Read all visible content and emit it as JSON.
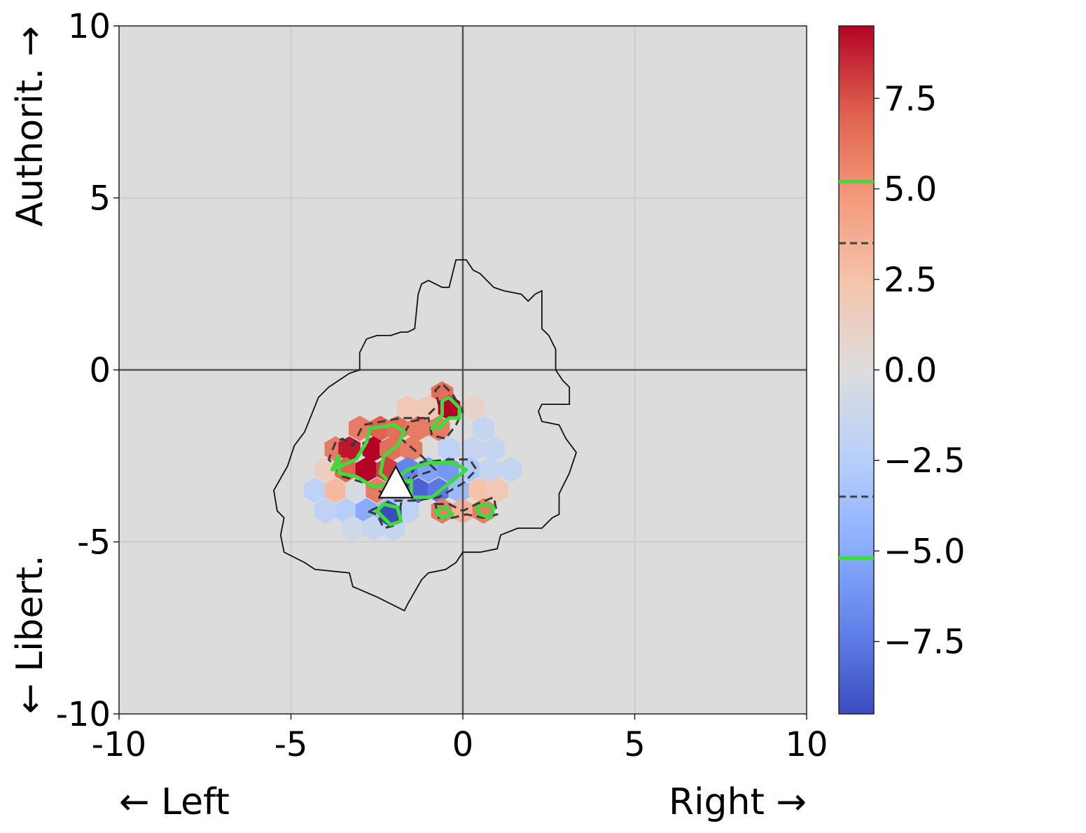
{
  "chart_data": {
    "type": "heatmap",
    "subtype": "hexbin",
    "title": "",
    "xlim": [
      -10,
      10
    ],
    "ylim": [
      -10,
      10
    ],
    "x_ticks": [
      "-10",
      "-5",
      "0",
      "5",
      "10"
    ],
    "y_ticks": [
      "-10",
      "-5",
      "0",
      "5",
      "10"
    ],
    "x_label_left": "← Left",
    "x_label_right": "Right →",
    "y_label_top": "Authorit. →",
    "y_label_bottom": "← Libert.",
    "grid": true,
    "background_color": "#dcdcdc",
    "colormap": "coolwarm",
    "colorbar": {
      "range": [
        -9.5,
        9.5
      ],
      "tick_values": [
        7.5,
        5.0,
        2.5,
        0.0,
        -2.5,
        -5.0,
        -7.5
      ],
      "tick_labels": [
        "7.5",
        "5.0",
        "2.5",
        "0.0",
        "−2.5",
        "−5.0",
        "−7.5"
      ],
      "contour_lines": [
        {
          "value": 5.2,
          "style": "solid",
          "color": "#3ddc3d"
        },
        {
          "value": 3.5,
          "style": "dashed",
          "color": "#404040"
        },
        {
          "value": -3.5,
          "style": "dashed",
          "color": "#404040"
        },
        {
          "value": -5.2,
          "style": "solid",
          "color": "#3ddc3d"
        }
      ]
    },
    "hex_cells": [
      {
        "x": -0.6,
        "y": -0.7,
        "value": 6.5
      },
      {
        "x": -1.6,
        "y": -1.1,
        "value": 2
      },
      {
        "x": -1.0,
        "y": -1.1,
        "value": 2
      },
      {
        "x": -0.4,
        "y": -1.1,
        "value": 9.5
      },
      {
        "x": 0.3,
        "y": -1.1,
        "value": 1
      },
      {
        "x": -3.0,
        "y": -1.7,
        "value": 6
      },
      {
        "x": -2.4,
        "y": -1.7,
        "value": 7
      },
      {
        "x": -1.9,
        "y": -1.7,
        "value": 6.5
      },
      {
        "x": -1.3,
        "y": -1.7,
        "value": 6
      },
      {
        "x": -0.7,
        "y": -1.7,
        "value": 6
      },
      {
        "x": 0.6,
        "y": -1.7,
        "value": -1.5
      },
      {
        "x": -3.7,
        "y": -2.3,
        "value": 6
      },
      {
        "x": -3.3,
        "y": -2.3,
        "value": 9
      },
      {
        "x": -2.6,
        "y": -2.3,
        "value": 9.5
      },
      {
        "x": -2.1,
        "y": -2.3,
        "value": 6.5
      },
      {
        "x": -1.5,
        "y": -2.3,
        "value": 6
      },
      {
        "x": -0.4,
        "y": -2.3,
        "value": -2
      },
      {
        "x": 0.3,
        "y": -2.3,
        "value": -1.5
      },
      {
        "x": 0.9,
        "y": -2.3,
        "value": -1.5
      },
      {
        "x": -4.0,
        "y": -2.9,
        "value": 1.5
      },
      {
        "x": -3.4,
        "y": -2.9,
        "value": 7
      },
      {
        "x": -2.8,
        "y": -2.9,
        "value": 9.5
      },
      {
        "x": -2.2,
        "y": -2.9,
        "value": 8
      },
      {
        "x": -1.6,
        "y": -2.9,
        "value": -7
      },
      {
        "x": -1.0,
        "y": -2.9,
        "value": -5.5
      },
      {
        "x": -0.4,
        "y": -2.9,
        "value": -6
      },
      {
        "x": 0.2,
        "y": -2.9,
        "value": -3
      },
      {
        "x": 0.8,
        "y": -2.9,
        "value": -1.5
      },
      {
        "x": 1.4,
        "y": -2.9,
        "value": -1.5
      },
      {
        "x": -4.3,
        "y": -3.5,
        "value": -2
      },
      {
        "x": -3.7,
        "y": -3.5,
        "value": 3
      },
      {
        "x": -3.1,
        "y": -3.5,
        "value": -0.5
      },
      {
        "x": -2.5,
        "y": -3.5,
        "value": 6
      },
      {
        "x": -1.9,
        "y": -3.5,
        "value": -4
      },
      {
        "x": -1.3,
        "y": -3.5,
        "value": -8.5
      },
      {
        "x": -0.7,
        "y": -3.5,
        "value": -7.5
      },
      {
        "x": -0.1,
        "y": -3.5,
        "value": -4
      },
      {
        "x": 0.5,
        "y": -3.5,
        "value": 2.5
      },
      {
        "x": 1.0,
        "y": -3.5,
        "value": 2
      },
      {
        "x": -4.0,
        "y": -4.1,
        "value": -2
      },
      {
        "x": -3.4,
        "y": -4.1,
        "value": -2.5
      },
      {
        "x": -2.8,
        "y": -4.1,
        "value": -5
      },
      {
        "x": -2.2,
        "y": -4.1,
        "value": -4
      },
      {
        "x": -1.6,
        "y": -4.1,
        "value": -2
      },
      {
        "x": -0.6,
        "y": -4.1,
        "value": 6
      },
      {
        "x": 0.0,
        "y": -4.1,
        "value": 3.5
      },
      {
        "x": 0.6,
        "y": -4.1,
        "value": 6
      },
      {
        "x": -3.2,
        "y": -4.6,
        "value": -1
      },
      {
        "x": -2.6,
        "y": -4.6,
        "value": -1.5
      },
      {
        "x": -2.0,
        "y": -4.6,
        "value": -1.5
      },
      {
        "x": -2.1,
        "y": -4.2,
        "value": -9.5
      }
    ],
    "outline_polygon": [
      [
        -0.2,
        3.2
      ],
      [
        0.1,
        3.2
      ],
      [
        0.3,
        2.9
      ],
      [
        0.5,
        2.8
      ],
      [
        0.9,
        2.4
      ],
      [
        1.2,
        2.3
      ],
      [
        1.7,
        2.2
      ],
      [
        1.9,
        2.0
      ],
      [
        2.1,
        2.2
      ],
      [
        2.3,
        2.3
      ],
      [
        2.3,
        1.2
      ],
      [
        2.5,
        1.0
      ],
      [
        2.7,
        0.6
      ],
      [
        2.7,
        0.0
      ],
      [
        2.9,
        -0.3
      ],
      [
        3.1,
        -0.5
      ],
      [
        3.1,
        -1.0
      ],
      [
        2.7,
        -1.0
      ],
      [
        2.3,
        -1.0
      ],
      [
        2.2,
        -1.2
      ],
      [
        2.3,
        -1.5
      ],
      [
        2.8,
        -1.6
      ],
      [
        3.0,
        -2.0
      ],
      [
        3.3,
        -2.4
      ],
      [
        3.1,
        -3.0
      ],
      [
        2.9,
        -3.4
      ],
      [
        2.8,
        -3.6
      ],
      [
        2.8,
        -4.2
      ],
      [
        2.6,
        -4.3
      ],
      [
        2.3,
        -4.6
      ],
      [
        1.6,
        -4.6
      ],
      [
        1.1,
        -4.8
      ],
      [
        1.0,
        -5.2
      ],
      [
        0.5,
        -5.3
      ],
      [
        0.0,
        -5.3
      ],
      [
        -0.2,
        -5.6
      ],
      [
        -0.5,
        -5.8
      ],
      [
        -1.0,
        -5.9
      ],
      [
        -1.2,
        -6.1
      ],
      [
        -1.6,
        -6.8
      ],
      [
        -1.7,
        -7.0
      ],
      [
        -2.5,
        -6.6
      ],
      [
        -3.2,
        -6.3
      ],
      [
        -3.3,
        -5.9
      ],
      [
        -4.3,
        -5.8
      ],
      [
        -4.6,
        -5.6
      ],
      [
        -5.2,
        -5.3
      ],
      [
        -5.3,
        -4.8
      ],
      [
        -5.2,
        -4.3
      ],
      [
        -5.4,
        -4.1
      ],
      [
        -5.5,
        -3.5
      ],
      [
        -5.1,
        -2.8
      ],
      [
        -4.9,
        -2.2
      ],
      [
        -4.6,
        -1.8
      ],
      [
        -4.4,
        -1.3
      ],
      [
        -4.2,
        -0.8
      ],
      [
        -3.9,
        -0.5
      ],
      [
        -3.6,
        -0.3
      ],
      [
        -3.3,
        -0.1
      ],
      [
        -3.0,
        0.0
      ],
      [
        -3.0,
        0.5
      ],
      [
        -2.8,
        0.9
      ],
      [
        -2.5,
        1.0
      ],
      [
        -2.1,
        1.0
      ],
      [
        -1.8,
        1.1
      ],
      [
        -1.6,
        1.1
      ],
      [
        -1.4,
        1.2
      ],
      [
        -1.3,
        2.2
      ],
      [
        -1.2,
        2.5
      ],
      [
        -1.0,
        2.6
      ],
      [
        -0.6,
        2.4
      ],
      [
        -0.4,
        2.4
      ],
      [
        -0.3,
        2.8
      ]
    ],
    "contours_green": [
      [
        [
          -3.6,
          -2.5
        ],
        [
          -3.8,
          -2.9
        ],
        [
          -3.1,
          -2.6
        ],
        [
          -2.8,
          -2.1
        ],
        [
          -2.7,
          -1.7
        ],
        [
          -2.0,
          -1.6
        ],
        [
          -1.7,
          -1.8
        ],
        [
          -1.9,
          -2.2
        ],
        [
          -2.3,
          -2.5
        ],
        [
          -2.4,
          -3.0
        ],
        [
          -2.1,
          -3.3
        ],
        [
          -1.6,
          -2.9
        ],
        [
          -1.0,
          -2.7
        ],
        [
          -0.3,
          -2.7
        ],
        [
          0.1,
          -2.9
        ],
        [
          -0.4,
          -3.3
        ],
        [
          -0.9,
          -3.7
        ],
        [
          -1.5,
          -3.7
        ],
        [
          -1.5,
          -3.2
        ],
        [
          -2.0,
          -3.3
        ],
        [
          -2.6,
          -3.4
        ],
        [
          -3.1,
          -3.1
        ],
        [
          -3.6,
          -3.0
        ]
      ],
      [
        [
          -0.7,
          -1.7
        ],
        [
          -0.4,
          -1.4
        ],
        [
          -0.1,
          -1.4
        ],
        [
          -0.1,
          -1.1
        ],
        [
          -0.4,
          -0.8
        ],
        [
          -0.6,
          -0.9
        ],
        [
          -0.6,
          -1.3
        ],
        [
          -0.9,
          -1.7
        ]
      ],
      [
        [
          -2.5,
          -4.1
        ],
        [
          -2.3,
          -3.9
        ],
        [
          -1.9,
          -4.0
        ],
        [
          -1.8,
          -4.4
        ],
        [
          -2.1,
          -4.5
        ],
        [
          -2.3,
          -4.3
        ]
      ],
      [
        [
          -0.8,
          -4.1
        ],
        [
          -0.5,
          -4.0
        ],
        [
          -0.3,
          -4.2
        ],
        [
          -0.6,
          -4.3
        ]
      ],
      [
        [
          0.4,
          -4.0
        ],
        [
          0.6,
          -3.9
        ],
        [
          0.9,
          -4.0
        ],
        [
          0.8,
          -4.3
        ],
        [
          0.5,
          -4.2
        ]
      ]
    ],
    "contours_dashed": [
      [
        [
          -3.7,
          -2.1
        ],
        [
          -3.9,
          -2.6
        ],
        [
          -3.5,
          -3.1
        ],
        [
          -2.8,
          -3.3
        ],
        [
          -2.3,
          -3.6
        ],
        [
          -1.8,
          -3.6
        ],
        [
          -1.4,
          -3.1
        ],
        [
          -0.8,
          -2.9
        ],
        [
          -1.2,
          -2.5
        ],
        [
          -1.8,
          -2.0
        ],
        [
          -1.5,
          -1.5
        ],
        [
          -1.0,
          -1.4
        ],
        [
          -0.9,
          -1.9
        ],
        [
          -0.5,
          -2.0
        ],
        [
          -0.2,
          -1.6
        ],
        [
          0.0,
          -1.2
        ],
        [
          -0.3,
          -0.7
        ],
        [
          -0.6,
          -0.4
        ],
        [
          -0.8,
          -0.6
        ],
        [
          -0.7,
          -1.0
        ],
        [
          -1.1,
          -1.4
        ],
        [
          -1.8,
          -1.4
        ],
        [
          -2.9,
          -1.6
        ],
        [
          -3.2,
          -2.2
        ],
        [
          -3.5,
          -2.0
        ]
      ],
      [
        [
          -2.7,
          -4.1
        ],
        [
          -2.1,
          -3.8
        ],
        [
          -1.4,
          -3.8
        ],
        [
          -0.7,
          -3.7
        ],
        [
          0.0,
          -3.3
        ],
        [
          0.4,
          -2.9
        ],
        [
          0.2,
          -2.6
        ],
        [
          -0.4,
          -2.6
        ],
        [
          -1.3,
          -2.7
        ],
        [
          -1.5,
          -3.0
        ],
        [
          -1.7,
          -3.4
        ],
        [
          -1.8,
          -3.9
        ],
        [
          -1.9,
          -4.5
        ],
        [
          -2.3,
          -4.6
        ],
        [
          -2.5,
          -4.2
        ],
        [
          -2.8,
          -4.1
        ]
      ],
      [
        [
          -0.8,
          -3.9
        ],
        [
          -0.4,
          -3.9
        ],
        [
          0.0,
          -4.1
        ],
        [
          0.4,
          -3.9
        ],
        [
          0.9,
          -3.7
        ],
        [
          1.0,
          -4.2
        ],
        [
          0.6,
          -4.3
        ],
        [
          0.1,
          -4.2
        ],
        [
          -0.3,
          -4.3
        ],
        [
          -0.7,
          -4.3
        ]
      ]
    ],
    "marker": {
      "shape": "triangle",
      "x": -1.95,
      "y": -3.3,
      "color": "#ffffff"
    }
  }
}
